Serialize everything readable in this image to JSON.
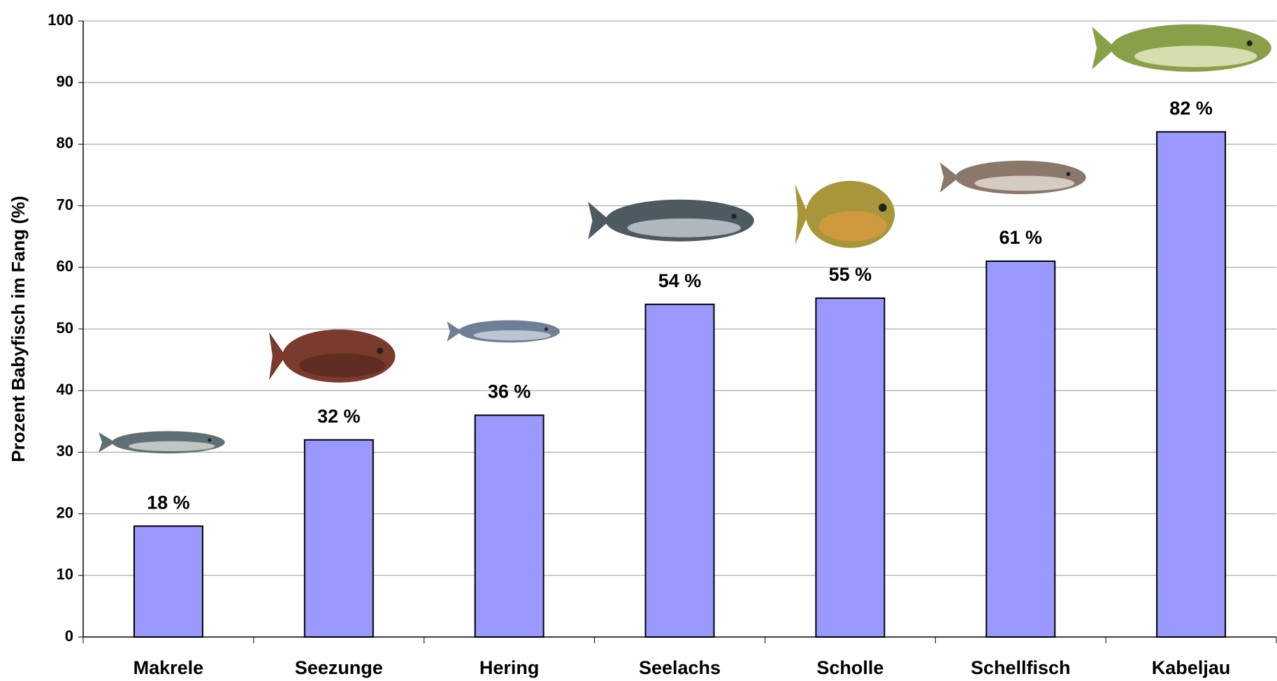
{
  "chart_data": {
    "type": "bar",
    "y_axis_label": "Prozent Babyfisch im Fang (%)",
    "categories": [
      "Makrele",
      "Seezunge",
      "Hering",
      "Seelachs",
      "Scholle",
      "Schellfisch",
      "Kabeljau"
    ],
    "values": [
      18,
      32,
      36,
      54,
      55,
      61,
      82
    ],
    "value_labels": [
      "18 %",
      "32 %",
      "36 %",
      "54 %",
      "55 %",
      "61 %",
      "82 %"
    ],
    "color": "#9999ff",
    "ylim": [
      0,
      100
    ],
    "yticks": [
      0,
      10,
      20,
      30,
      40,
      50,
      60,
      70,
      80,
      90,
      100
    ],
    "grid": true
  }
}
